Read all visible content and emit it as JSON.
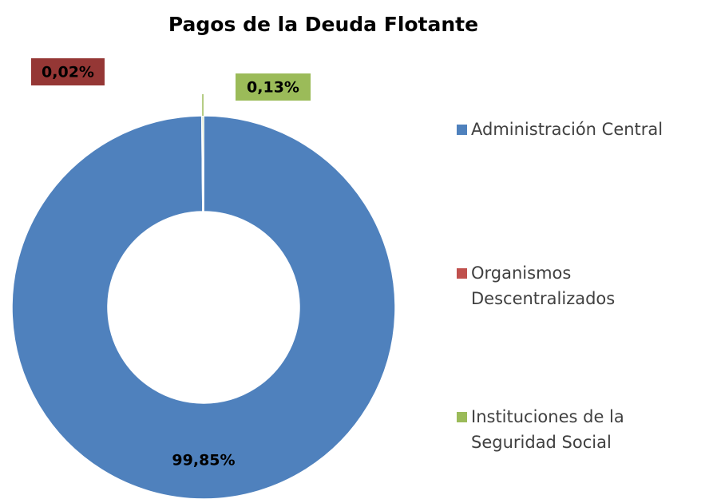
{
  "chart_data": {
    "type": "donut",
    "title": "Pagos de la Deuda Flotante",
    "categories": [
      "Administración Central",
      "Organismos Descentralizados",
      "Instituciones de la Seguridad Social"
    ],
    "values": [
      99.85,
      0.02,
      0.13
    ],
    "value_labels": [
      "99,85%",
      "0,02%",
      "0,13%"
    ],
    "colors": [
      "#4f81bd",
      "#c0504d",
      "#9bbb59"
    ],
    "legend": "right"
  }
}
